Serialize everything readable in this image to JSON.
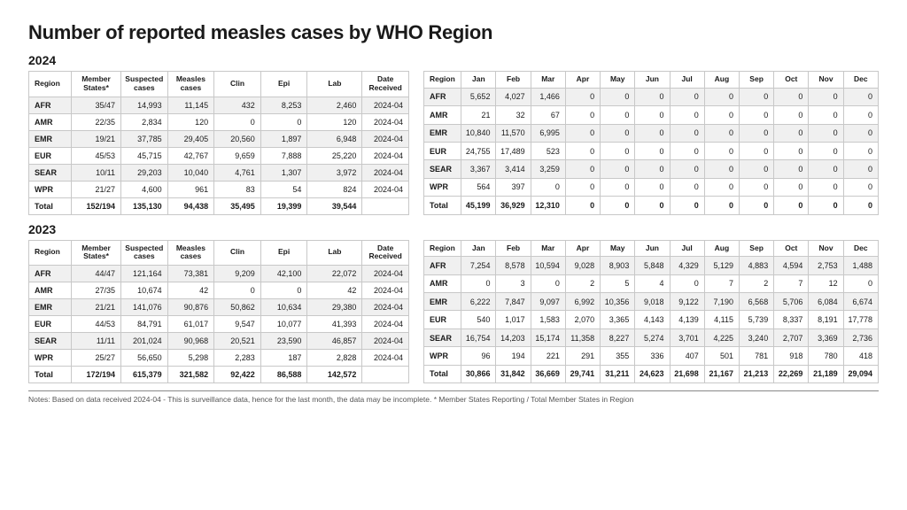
{
  "title": "Number of reported measles cases by WHO Region",
  "years": [
    "2024",
    "2023"
  ],
  "summaryHeaders": [
    "Region",
    "Member\nStates*",
    "Suspected\ncases",
    "Measles\ncases",
    "Clin",
    "Epi",
    "Lab",
    "Date\nReceived"
  ],
  "monthHeaders": [
    "Region",
    "Jan",
    "Feb",
    "Mar",
    "Apr",
    "May",
    "Jun",
    "Jul",
    "Aug",
    "Sep",
    "Oct",
    "Nov",
    "Dec"
  ],
  "summary": {
    "2024": [
      [
        "AFR",
        "35/47",
        "14,993",
        "11,145",
        "432",
        "8,253",
        "2,460",
        "2024-04"
      ],
      [
        "AMR",
        "22/35",
        "2,834",
        "120",
        "0",
        "0",
        "120",
        "2024-04"
      ],
      [
        "EMR",
        "19/21",
        "37,785",
        "29,405",
        "20,560",
        "1,897",
        "6,948",
        "2024-04"
      ],
      [
        "EUR",
        "45/53",
        "45,715",
        "42,767",
        "9,659",
        "7,888",
        "25,220",
        "2024-04"
      ],
      [
        "SEAR",
        "10/11",
        "29,203",
        "10,040",
        "4,761",
        "1,307",
        "3,972",
        "2024-04"
      ],
      [
        "WPR",
        "21/27",
        "4,600",
        "961",
        "83",
        "54",
        "824",
        "2024-04"
      ],
      [
        "Total",
        "152/194",
        "135,130",
        "94,438",
        "35,495",
        "19,399",
        "39,544",
        ""
      ]
    ],
    "2023": [
      [
        "AFR",
        "44/47",
        "121,164",
        "73,381",
        "9,209",
        "42,100",
        "22,072",
        "2024-04"
      ],
      [
        "AMR",
        "27/35",
        "10,674",
        "42",
        "0",
        "0",
        "42",
        "2024-04"
      ],
      [
        "EMR",
        "21/21",
        "141,076",
        "90,876",
        "50,862",
        "10,634",
        "29,380",
        "2024-04"
      ],
      [
        "EUR",
        "44/53",
        "84,791",
        "61,017",
        "9,547",
        "10,077",
        "41,393",
        "2024-04"
      ],
      [
        "SEAR",
        "11/11",
        "201,024",
        "90,968",
        "20,521",
        "23,590",
        "46,857",
        "2024-04"
      ],
      [
        "WPR",
        "25/27",
        "56,650",
        "5,298",
        "2,283",
        "187",
        "2,828",
        "2024-04"
      ],
      [
        "Total",
        "172/194",
        "615,379",
        "321,582",
        "92,422",
        "86,588",
        "142,572",
        ""
      ]
    ]
  },
  "monthly": {
    "2024": [
      [
        "AFR",
        "5,652",
        "4,027",
        "1,466",
        "0",
        "0",
        "0",
        "0",
        "0",
        "0",
        "0",
        "0",
        "0"
      ],
      [
        "AMR",
        "21",
        "32",
        "67",
        "0",
        "0",
        "0",
        "0",
        "0",
        "0",
        "0",
        "0",
        "0"
      ],
      [
        "EMR",
        "10,840",
        "11,570",
        "6,995",
        "0",
        "0",
        "0",
        "0",
        "0",
        "0",
        "0",
        "0",
        "0"
      ],
      [
        "EUR",
        "24,755",
        "17,489",
        "523",
        "0",
        "0",
        "0",
        "0",
        "0",
        "0",
        "0",
        "0",
        "0"
      ],
      [
        "SEAR",
        "3,367",
        "3,414",
        "3,259",
        "0",
        "0",
        "0",
        "0",
        "0",
        "0",
        "0",
        "0",
        "0"
      ],
      [
        "WPR",
        "564",
        "397",
        "0",
        "0",
        "0",
        "0",
        "0",
        "0",
        "0",
        "0",
        "0",
        "0"
      ],
      [
        "Total",
        "45,199",
        "36,929",
        "12,310",
        "0",
        "0",
        "0",
        "0",
        "0",
        "0",
        "0",
        "0",
        "0"
      ]
    ],
    "2023": [
      [
        "AFR",
        "7,254",
        "8,578",
        "10,594",
        "9,028",
        "8,903",
        "5,848",
        "4,329",
        "5,129",
        "4,883",
        "4,594",
        "2,753",
        "1,488"
      ],
      [
        "AMR",
        "0",
        "3",
        "0",
        "2",
        "5",
        "4",
        "0",
        "7",
        "2",
        "7",
        "12",
        "0"
      ],
      [
        "EMR",
        "6,222",
        "7,847",
        "9,097",
        "6,992",
        "10,356",
        "9,018",
        "9,122",
        "7,190",
        "6,568",
        "5,706",
        "6,084",
        "6,674"
      ],
      [
        "EUR",
        "540",
        "1,017",
        "1,583",
        "2,070",
        "3,365",
        "4,143",
        "4,139",
        "4,115",
        "5,739",
        "8,337",
        "8,191",
        "17,778"
      ],
      [
        "SEAR",
        "16,754",
        "14,203",
        "15,174",
        "11,358",
        "8,227",
        "5,274",
        "3,701",
        "4,225",
        "3,240",
        "2,707",
        "3,369",
        "2,736"
      ],
      [
        "WPR",
        "96",
        "194",
        "221",
        "291",
        "355",
        "336",
        "407",
        "501",
        "781",
        "918",
        "780",
        "418"
      ],
      [
        "Total",
        "30,866",
        "31,842",
        "36,669",
        "29,741",
        "31,211",
        "24,623",
        "21,698",
        "21,167",
        "21,213",
        "22,269",
        "21,189",
        "29,094"
      ]
    ]
  },
  "notes": "Notes: Based on data received 2024-04 - This is surveillance data, hence for the last month, the data may be incomplete. * Member States Reporting / Total Member States in Region",
  "style": {
    "page_bg": "#ffffff",
    "text_color": "#1a1a1a",
    "border_color": "#c8c8c8",
    "stripe_color": "#f0f0f0",
    "notes_color": "#555555",
    "title_fontsize": 22,
    "year_fontsize": 14,
    "table_fontsize": 9,
    "notes_fontsize": 8.5
  }
}
